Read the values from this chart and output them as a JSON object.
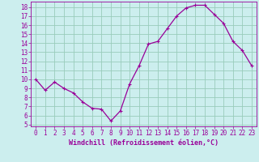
{
  "x": [
    0,
    1,
    2,
    3,
    4,
    5,
    6,
    7,
    8,
    9,
    10,
    11,
    12,
    13,
    14,
    15,
    16,
    17,
    18,
    19,
    20,
    21,
    22,
    23
  ],
  "y": [
    10.0,
    8.8,
    9.7,
    9.0,
    8.5,
    7.5,
    6.8,
    6.7,
    5.4,
    6.5,
    9.5,
    11.5,
    13.9,
    14.2,
    15.6,
    17.0,
    17.9,
    18.2,
    18.2,
    17.2,
    16.2,
    14.2,
    13.2,
    11.5
  ],
  "line_color": "#990099",
  "marker": "+",
  "marker_size": 3,
  "marker_linewidth": 0.8,
  "line_width": 0.9,
  "background_color": "#cceeee",
  "grid_color": "#99ccbb",
  "xlabel": "Windchill (Refroidissement éolien,°C)",
  "xlabel_color": "#990099",
  "xlabel_fontsize": 6,
  "tick_color": "#990099",
  "tick_fontsize": 5.5,
  "xlim": [
    -0.5,
    23.5
  ],
  "ylim": [
    4.8,
    18.6
  ],
  "yticks": [
    5,
    6,
    7,
    8,
    9,
    10,
    11,
    12,
    13,
    14,
    15,
    16,
    17,
    18
  ],
  "xticks": [
    0,
    1,
    2,
    3,
    4,
    5,
    6,
    7,
    8,
    9,
    10,
    11,
    12,
    13,
    14,
    15,
    16,
    17,
    18,
    19,
    20,
    21,
    22,
    23
  ]
}
